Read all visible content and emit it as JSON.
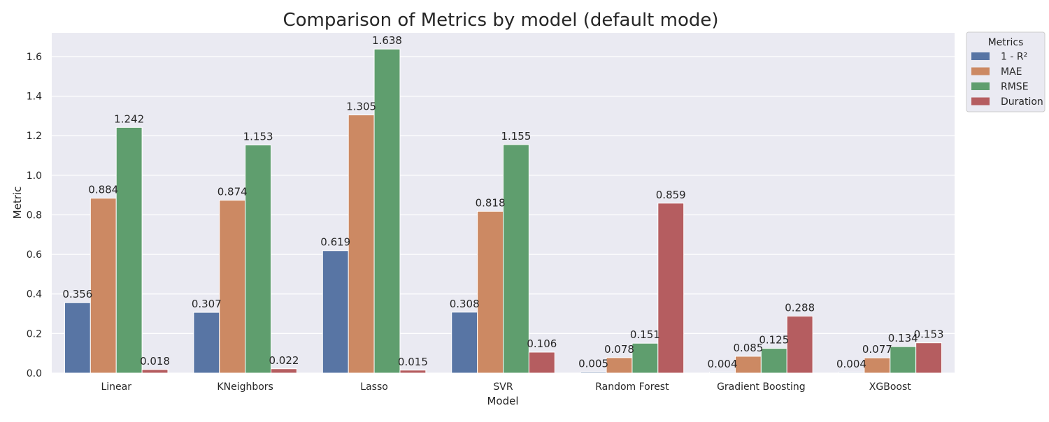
{
  "chart_data": {
    "type": "bar",
    "title": "Comparison of Metrics by model (default mode)",
    "xlabel": "Model",
    "ylabel": "Metric",
    "categories": [
      "Linear",
      "KNeighbors",
      "Lasso",
      "SVR",
      "Random Forest",
      "Gradient Boosting",
      "XGBoost"
    ],
    "series": [
      {
        "name": "1 - R²",
        "color": "#5875A4",
        "values": [
          0.356,
          0.307,
          0.619,
          0.308,
          0.005,
          0.004,
          0.004
        ]
      },
      {
        "name": "MAE",
        "color": "#CC8963",
        "values": [
          0.884,
          0.874,
          1.305,
          0.818,
          0.078,
          0.085,
          0.077
        ]
      },
      {
        "name": "RMSE",
        "color": "#5F9E6E",
        "values": [
          1.242,
          1.153,
          1.638,
          1.155,
          0.151,
          0.125,
          0.134
        ]
      },
      {
        "name": "Duration",
        "color": "#B55D60",
        "values": [
          0.018,
          0.022,
          0.015,
          0.106,
          0.859,
          0.288,
          0.153
        ]
      }
    ],
    "value_labels": [
      [
        "0.356",
        "0.307",
        "0.619",
        "0.308",
        "0.005",
        "0.004",
        "0.004"
      ],
      [
        "0.884",
        "0.874",
        "1.305",
        "0.818",
        "0.078",
        "0.085",
        "0.077"
      ],
      [
        "1.242",
        "1.153",
        "1.638",
        "1.155",
        "0.151",
        "0.125",
        "0.134"
      ],
      [
        "0.018",
        "0.022",
        "0.015",
        "0.106",
        "0.859",
        "0.288",
        "0.153"
      ]
    ],
    "yticks": [
      "0.0",
      "0.2",
      "0.4",
      "0.6",
      "0.8",
      "1.0",
      "1.2",
      "1.4",
      "1.6"
    ],
    "ylim": [
      0,
      1.72
    ],
    "grid": true,
    "legend": {
      "title": "Metrics",
      "placement": "outside top-right"
    },
    "background_color": "#EAEAF2",
    "grid_color": "#FFFFFF"
  }
}
